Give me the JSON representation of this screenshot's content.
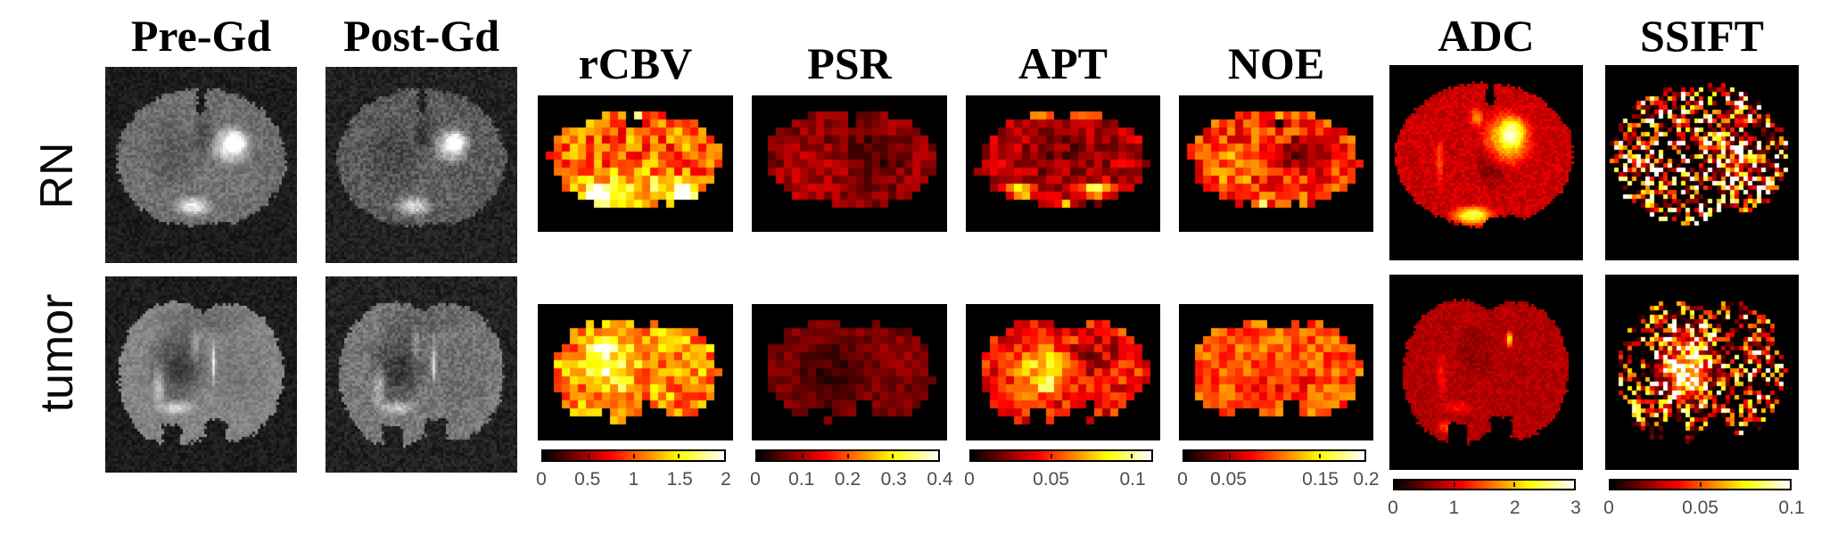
{
  "figure": {
    "background_color": "#ffffff",
    "text_color": "#000000",
    "tick_label_color": "#4d4d4d",
    "colormap": {
      "name": "hot",
      "stops": [
        "#000000",
        "#ff0000",
        "#ffff00",
        "#ffffff"
      ]
    },
    "row_labels": [
      "RN",
      "tumor"
    ],
    "columns": [
      {
        "id": "pre-gd",
        "label": "Pre-Gd",
        "image_type": "grayscale",
        "colorbar": null
      },
      {
        "id": "post-gd",
        "label": "Post-Gd",
        "image_type": "grayscale",
        "colorbar": null
      },
      {
        "id": "rcbv",
        "label": "rCBV",
        "image_type": "hot-pixelated",
        "colorbar": {
          "min": 0,
          "max": 2,
          "values": [
            0,
            0.5,
            1,
            1.5,
            2
          ],
          "labels": [
            "0",
            "0.5",
            "1",
            "1.5",
            "2"
          ]
        }
      },
      {
        "id": "psr",
        "label": "PSR",
        "image_type": "hot-pixelated",
        "colorbar": {
          "min": 0,
          "max": 0.4,
          "values": [
            0,
            0.1,
            0.2,
            0.3,
            0.4
          ],
          "labels": [
            "0",
            "0.1",
            "0.2",
            "0.3",
            "0.4"
          ]
        }
      },
      {
        "id": "apt",
        "label": "APT",
        "image_type": "hot-pixelated",
        "colorbar": {
          "min": 0,
          "max": 0.1125,
          "values": [
            0,
            0.05,
            0.1
          ],
          "labels": [
            "0",
            "0.05",
            "0.1"
          ]
        }
      },
      {
        "id": "noe",
        "label": "NOE",
        "image_type": "hot-pixelated",
        "colorbar": {
          "min": 0,
          "max": 0.2,
          "values": [
            0,
            0.05,
            0.15,
            0.2
          ],
          "labels": [
            "0",
            "0.05",
            "0.15",
            "0.2"
          ]
        }
      },
      {
        "id": "adc",
        "label": "ADC",
        "image_type": "hot-smooth",
        "colorbar": {
          "min": 0,
          "max": 3,
          "values": [
            0,
            1,
            2,
            3
          ],
          "labels": [
            "0",
            "1",
            "2",
            "3"
          ]
        }
      },
      {
        "id": "ssift",
        "label": "SSIFT",
        "image_type": "hot-speckle",
        "colorbar": {
          "min": 0,
          "max": 0.1,
          "values": [
            0,
            0.05,
            0.1
          ],
          "labels": [
            "0",
            "0.05",
            "0.1"
          ]
        }
      }
    ]
  }
}
